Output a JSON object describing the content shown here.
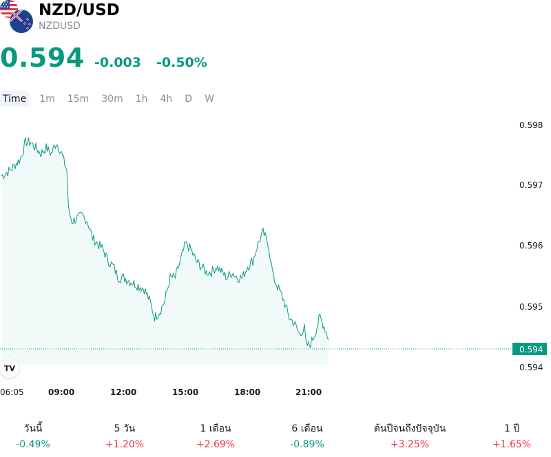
{
  "header": {
    "title": "NZD/USD",
    "subtitle": "NZDUSD",
    "price": "0.594",
    "change": "-0.003",
    "change_pct": "-0.50%"
  },
  "timeframes": [
    "Time",
    "1m",
    "15m",
    "30m",
    "1h",
    "4h",
    "D",
    "W"
  ],
  "selected_timeframe": "Time",
  "badge": "TV",
  "colors": {
    "up": "#089981",
    "down": "#f23645",
    "line": "#089981"
  },
  "chart_data": {
    "type": "line",
    "x_ticks": [
      "06:05",
      "09:00",
      "12:00",
      "15:00",
      "18:00",
      "21:00"
    ],
    "y_ticks": [
      "0.598",
      "0.597",
      "0.596",
      "0.595",
      "0.594"
    ],
    "ylim": [
      0.5937,
      0.5982
    ],
    "last_price_label": "0.594",
    "series": [
      {
        "x": [
          "06:05",
          "06:30",
          "07:00",
          "07:15",
          "07:30",
          "08:00",
          "08:15",
          "08:30",
          "08:45",
          "09:00",
          "09:15",
          "09:20",
          "09:30",
          "10:00",
          "10:15",
          "10:30",
          "11:00",
          "11:15",
          "11:30",
          "11:45",
          "12:00",
          "12:30",
          "13:00",
          "13:15",
          "13:30",
          "13:45",
          "14:00",
          "14:15",
          "14:30",
          "14:45",
          "15:00",
          "15:15",
          "15:30",
          "15:45",
          "16:00",
          "16:15",
          "16:30",
          "16:45",
          "17:00",
          "17:15",
          "17:30",
          "17:45",
          "18:00",
          "18:15",
          "18:30",
          "18:45",
          "19:00",
          "19:15",
          "19:30",
          "19:45",
          "20:00",
          "20:15",
          "20:30",
          "20:45",
          "20:50",
          "21:00",
          "21:15",
          "21:30",
          "21:45",
          "21:55"
        ],
        "values": [
          0.5971,
          0.5972,
          0.5974,
          0.5977,
          0.5977,
          0.5975,
          0.5976,
          0.5975,
          0.5977,
          0.5975,
          0.5972,
          0.5965,
          0.5963,
          0.5964,
          0.5963,
          0.596,
          0.5958,
          0.5956,
          0.5955,
          0.5953,
          0.5953,
          0.5952,
          0.5951,
          0.5949,
          0.5946,
          0.5947,
          0.5949,
          0.5953,
          0.5953,
          0.5956,
          0.5959,
          0.5958,
          0.5956,
          0.5955,
          0.5954,
          0.5954,
          0.5955,
          0.5954,
          0.5953,
          0.5954,
          0.5953,
          0.5953,
          0.5955,
          0.5956,
          0.5959,
          0.5961,
          0.5959,
          0.5953,
          0.5951,
          0.5949,
          0.5946,
          0.5945,
          0.5943,
          0.5944,
          0.5941,
          0.5941,
          0.5943,
          0.5946,
          0.5944,
          0.5942
        ]
      }
    ],
    "grid": false
  },
  "performance": [
    {
      "label": "วันนี้",
      "value": "-0.49%",
      "dir": "down"
    },
    {
      "label": "5 วัน",
      "value": "+1.20%",
      "dir": "up"
    },
    {
      "label": "1 เดือน",
      "value": "+2.69%",
      "dir": "up"
    },
    {
      "label": "6 เดือน",
      "value": "-0.89%",
      "dir": "down"
    },
    {
      "label": "ต้นปีจนถึงปัจจุบัน",
      "value": "+3.25%",
      "dir": "up"
    },
    {
      "label": "1 ปี",
      "value": "+1.65%",
      "dir": "up"
    }
  ]
}
